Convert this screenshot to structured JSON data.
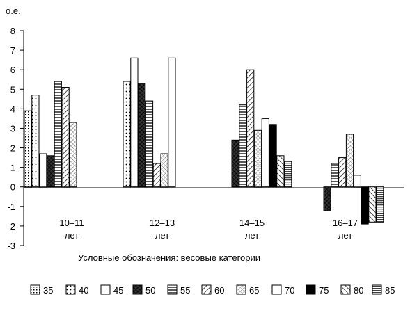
{
  "chart_data": {
    "type": "bar",
    "ylabel": "о.е.",
    "ylim": [
      -3,
      8
    ],
    "yticks": [
      "8",
      "7",
      "6",
      "5",
      "4",
      "3",
      "2",
      "1",
      "0",
      "-1",
      "-2",
      "-3"
    ],
    "categories": [
      {
        "line1": "10–11",
        "line2": "лет"
      },
      {
        "line1": "12–13",
        "line2": "лет"
      },
      {
        "line1": "14–15",
        "line2": "лет"
      },
      {
        "line1": "16–17",
        "line2": "лет"
      }
    ],
    "legend_title": "Условные обозначения: весовые категории",
    "legend_position": "bottom",
    "series": [
      {
        "name": "35",
        "pattern": "dot-square",
        "values": [
          3.9,
          null,
          null,
          null
        ]
      },
      {
        "name": "40",
        "pattern": "dots",
        "values": [
          4.7,
          5.4,
          null,
          null
        ]
      },
      {
        "name": "45",
        "pattern": "blank",
        "values": [
          1.7,
          6.6,
          null,
          null
        ]
      },
      {
        "name": "50",
        "pattern": "crosshatch-dark",
        "values": [
          1.6,
          5.3,
          2.4,
          -1.2
        ]
      },
      {
        "name": "55",
        "pattern": "horizontal",
        "values": [
          5.4,
          4.4,
          4.2,
          1.2
        ]
      },
      {
        "name": "60",
        "pattern": "diagonal",
        "values": [
          5.1,
          1.2,
          6.0,
          1.5
        ]
      },
      {
        "name": "65",
        "pattern": "crosshatch-light",
        "values": [
          3.3,
          1.7,
          2.9,
          2.7
        ]
      },
      {
        "name": "70",
        "pattern": "blank",
        "values": [
          null,
          6.6,
          3.5,
          0.6
        ]
      },
      {
        "name": "75",
        "pattern": "solid",
        "values": [
          null,
          null,
          3.2,
          -1.9
        ]
      },
      {
        "name": "80",
        "pattern": "back-diagonal",
        "values": [
          null,
          null,
          1.6,
          -1.8
        ]
      },
      {
        "name": "85",
        "pattern": "fine-horizontal",
        "values": [
          null,
          null,
          1.3,
          -1.8
        ]
      }
    ]
  }
}
